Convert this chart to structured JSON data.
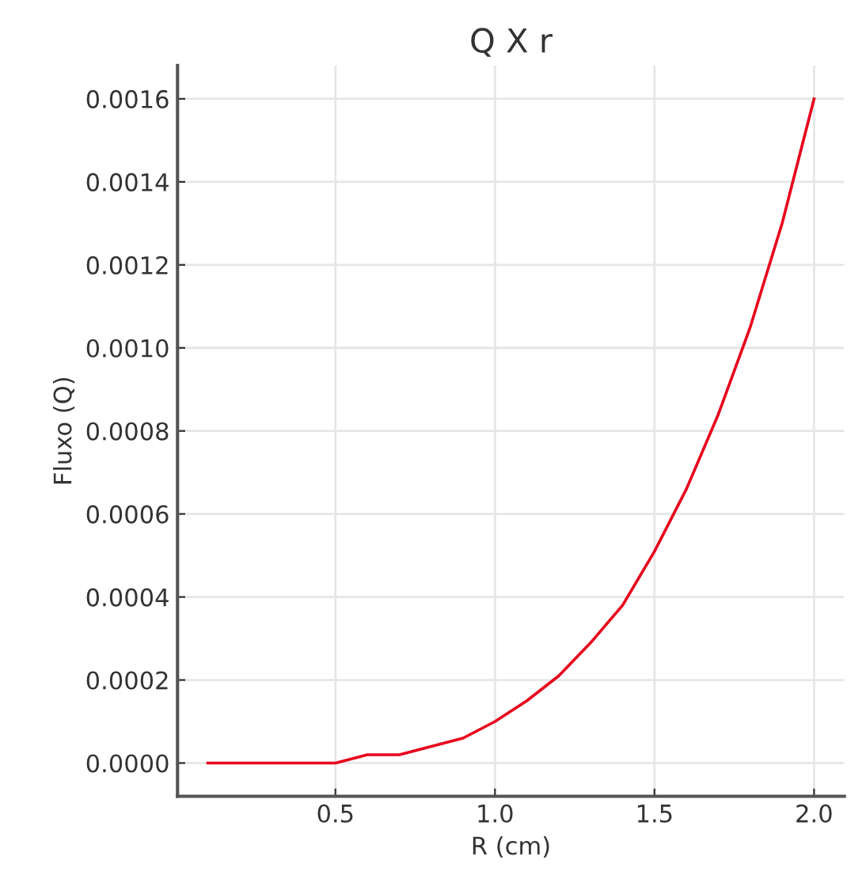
{
  "chart_data": {
    "type": "line",
    "title": "Q X r",
    "xlabel": "R (cm)",
    "ylabel": "Fluxo (Q)",
    "x": [
      0.1,
      0.2,
      0.3,
      0.4,
      0.5,
      0.6,
      0.7,
      0.8,
      0.9,
      1.0,
      1.1,
      1.2,
      1.3,
      1.4,
      1.5,
      1.6,
      1.7,
      1.8,
      1.9,
      2.0
    ],
    "series": [
      {
        "color": "#e8001c",
        "values": [
          0.0,
          0.0,
          0.0,
          0.0,
          0.0,
          2e-05,
          2e-05,
          4e-05,
          6e-05,
          0.0001,
          0.00015,
          0.00021,
          0.00029,
          0.00038,
          0.00051,
          0.00066,
          0.00084,
          0.00105,
          0.0013,
          0.0016
        ]
      }
    ],
    "xlim": [
      0.005,
      2.095
    ],
    "xticks": [
      0.5,
      {
        "value": 1,
        "label": "1.0"
      },
      1.5,
      {
        "value": 2,
        "label": "2.0"
      }
    ],
    "ylim": [
      -8e-05,
      0.00168
    ],
    "yticks": [
      {
        "value": 0,
        "label": "0.0000"
      },
      {
        "value": 0.0002,
        "label": "0.0002"
      },
      {
        "value": 0.0004,
        "label": "0.0004"
      },
      {
        "value": 0.0006,
        "label": "0.0006"
      },
      {
        "value": 0.0008,
        "label": "0.0008"
      },
      {
        "value": 0.001,
        "label": "0.0010"
      },
      {
        "value": 0.0012,
        "label": "0.0012"
      },
      {
        "value": 0.0014,
        "label": "0.0014"
      },
      {
        "value": 0.0016,
        "label": "0.0016"
      }
    ],
    "grid": true,
    "legend": false,
    "marker": "none",
    "line_style": "solid"
  }
}
